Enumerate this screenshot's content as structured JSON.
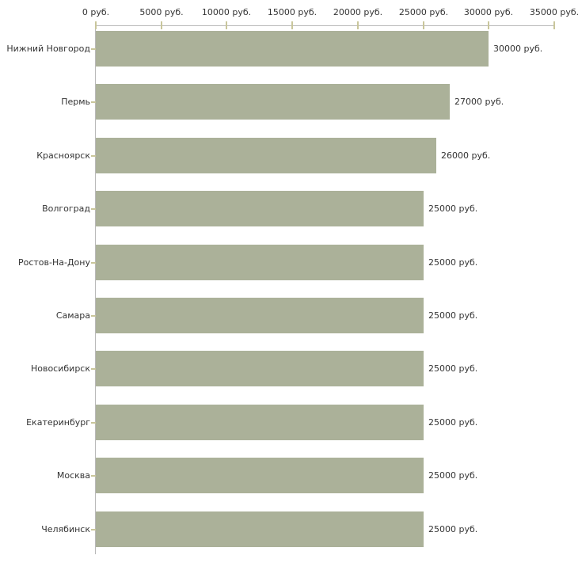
{
  "chart_data": {
    "type": "bar",
    "orientation": "horizontal",
    "title": "",
    "unit": "руб.",
    "categories": [
      "Нижний Новгород",
      "Пермь",
      "Красноярск",
      "Волгоград",
      "Ростов-На-Дону",
      "Самара",
      "Новосибирск",
      "Екатеринбург",
      "Москва",
      "Челябинск"
    ],
    "values": [
      30000,
      27000,
      26000,
      25000,
      25000,
      25000,
      25000,
      25000,
      25000,
      25000
    ],
    "value_labels": [
      "30000 руб.",
      "27000 руб.",
      "26000 руб.",
      "25000 руб.",
      "25000 руб.",
      "25000 руб.",
      "25000 руб.",
      "25000 руб.",
      "25000 руб.",
      "25000 руб."
    ],
    "x_axis": {
      "tick_values": [
        0,
        5000,
        10000,
        15000,
        20000,
        25000,
        30000,
        35000
      ],
      "tick_labels": [
        "0 руб.",
        "5000 руб.",
        "10000 руб.",
        "15000 руб.",
        "20000 руб.",
        "25000 руб.",
        "30000 руб.",
        "35000 руб."
      ],
      "xlim": [
        0,
        35000
      ]
    },
    "ylabel": "",
    "xlabel": "",
    "grid": false,
    "legend": false,
    "colors": {
      "bar": "#abb199",
      "axis_line": "#b9b9b9",
      "tick": "#c9c69b",
      "text": "#333333",
      "background": "#ffffff"
    }
  }
}
